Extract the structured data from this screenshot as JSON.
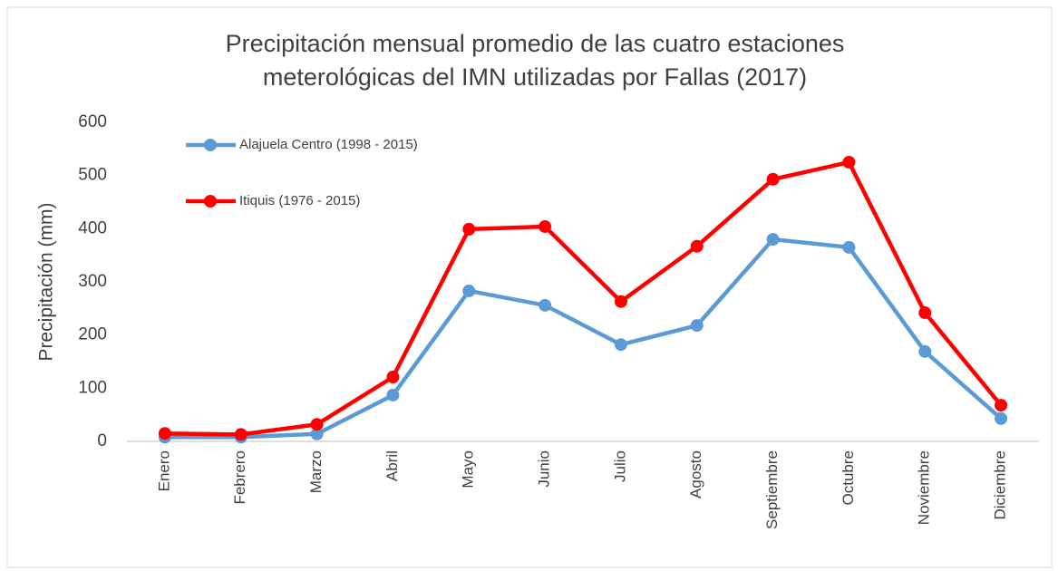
{
  "chart_data": {
    "type": "line",
    "title": [
      "Precipitación mensual promedio de las cuatro estaciones",
      "meterológicas del IMN utilizadas por Fallas (2017)"
    ],
    "y_label": "Precipitación (mm)",
    "categories": [
      "Enero",
      "Febrero",
      "Marzo",
      "Abril",
      "Mayo",
      "Junio",
      "Julio",
      "Agosto",
      "Septiembre",
      "Octubre",
      "Noviembre",
      "Diciembre"
    ],
    "series": [
      {
        "name": "Alajuela Centro (1998 - 2015)",
        "color": "#5b9bd5",
        "values": [
          8,
          8,
          14,
          87,
          283,
          256,
          182,
          218,
          380,
          365,
          169,
          43
        ]
      },
      {
        "name": "Itiquis (1976 - 2015)",
        "color": "#ff0000",
        "values": [
          15,
          13,
          32,
          121,
          399,
          404,
          263,
          367,
          493,
          525,
          242,
          68
        ]
      }
    ],
    "ylim": [
      0,
      600
    ],
    "yticks": [
      0,
      100,
      200,
      300,
      400,
      500,
      600
    ],
    "grid": false,
    "legend": "top-left"
  }
}
